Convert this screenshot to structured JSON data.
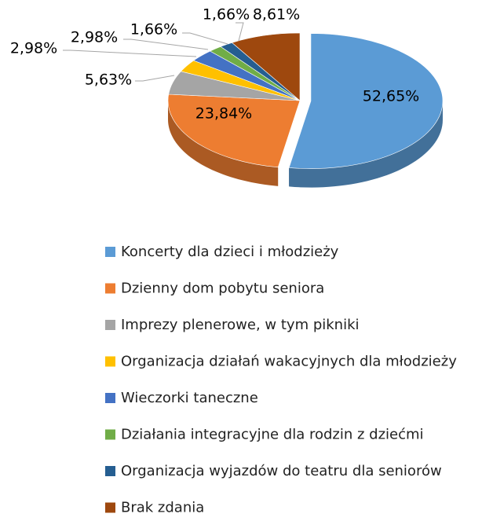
{
  "chart_data": {
    "type": "pie",
    "categories": [
      "Koncerty dla dzieci i młodzieży",
      "Dzienny dom pobytu seniora",
      "Imprezy plenerowe, w tym pikniki",
      "Organizacja działań wakacyjnych dla młodzieży",
      "Wieczorki taneczne",
      "Działania integracyjne dla rodzin z dziećmi",
      "Organizacja wyjazdów do teatru dla seniorów",
      "Brak zdania"
    ],
    "values": [
      52.65,
      23.84,
      5.63,
      2.98,
      2.98,
      1.66,
      1.66,
      8.61
    ],
    "value_labels": [
      "52,65%",
      "23,84%",
      "5,63%",
      "2,98%",
      "2,98%",
      "1,66%",
      "1,66%",
      "8,61%"
    ],
    "colors": [
      "#5b9bd5",
      "#ed7d31",
      "#a5a5a5",
      "#ffc000",
      "#4472c4",
      "#70ad47",
      "#255e91",
      "#9e480e"
    ],
    "legend": "bottom"
  }
}
